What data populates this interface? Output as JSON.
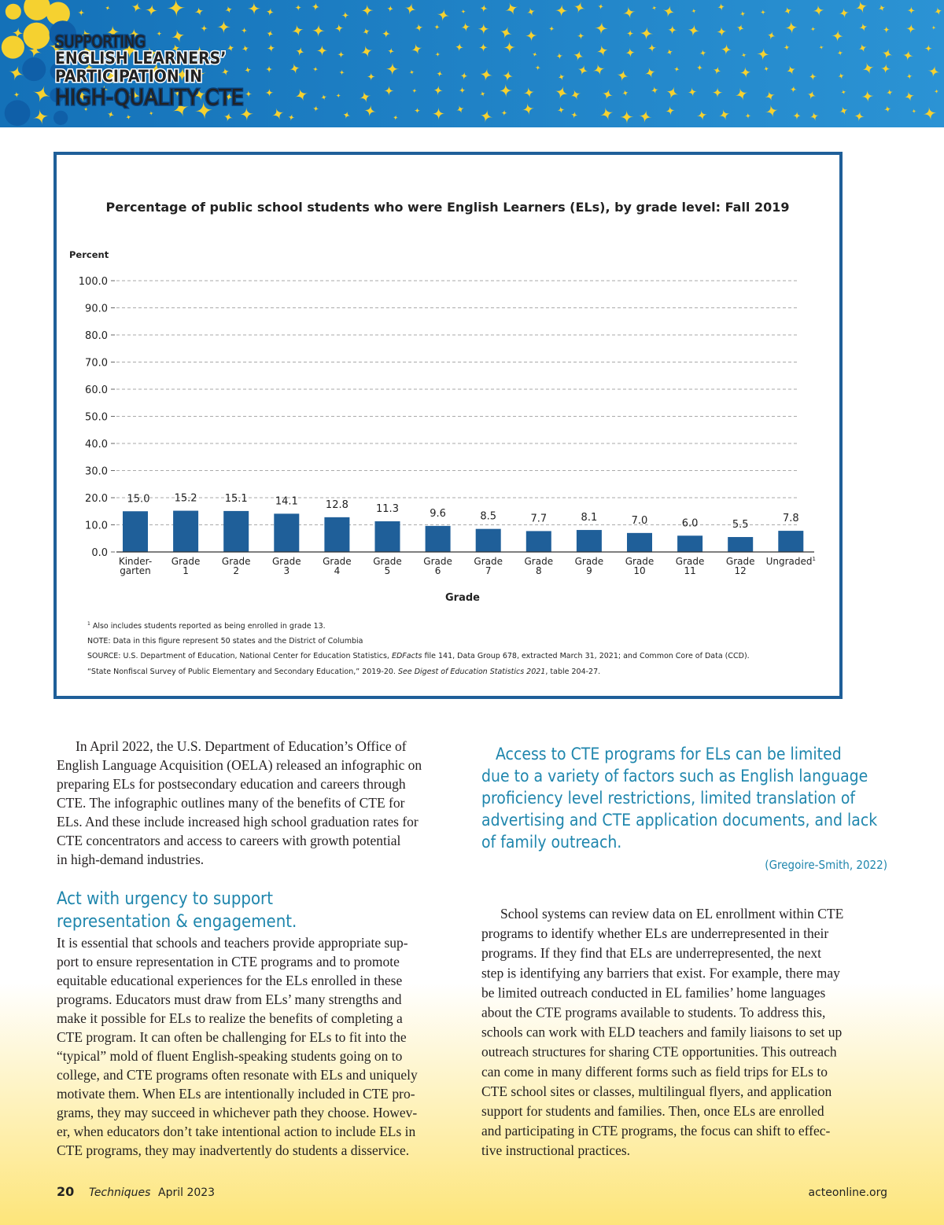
{
  "header": {
    "lines": [
      "SUPPORTING",
      "ENGLISH LEARNERS’",
      "PARTICIPATION IN",
      "HIGH-QUALITY CTE"
    ]
  },
  "chart_data": {
    "type": "bar",
    "title": "Percentage of public school students who were English Learners (ELs), by grade level: Fall 2019",
    "y_label": "Percent",
    "x_label": "Grade",
    "categories": [
      "Kinder- garten",
      "Grade 1",
      "Grade 2",
      "Grade 3",
      "Grade 4",
      "Grade 5",
      "Grade 6",
      "Grade 7",
      "Grade 8",
      "Grade 9",
      "Grade 10",
      "Grade 11",
      "Grade 12",
      "Ungraded"
    ],
    "values": [
      15.0,
      15.2,
      15.1,
      14.1,
      12.8,
      11.3,
      9.6,
      8.5,
      7.7,
      8.1,
      7.0,
      6.0,
      5.5,
      7.8
    ],
    "value_labels": [
      "15.0",
      "15.2",
      "15.1",
      "14.1",
      "12.8",
      "11.3",
      "9.6",
      "8.5",
      "7.7",
      "8.1",
      "7.0",
      "6.0",
      "5.5",
      "7.8"
    ],
    "color": "#1f5f99",
    "ylim": [
      0,
      100
    ],
    "yticks": [
      {
        "value": 0,
        "label": "0.0"
      },
      {
        "value": 10,
        "label": "10.0"
      },
      {
        "value": 20,
        "label": "20.0"
      },
      {
        "value": 30,
        "label": "30.0"
      },
      {
        "value": 40,
        "label": "40.0"
      },
      {
        "value": 50,
        "label": "50.0"
      },
      {
        "value": 60,
        "label": "60.0"
      },
      {
        "value": 70,
        "label": "70.0"
      },
      {
        "value": 80,
        "label": "80.0"
      },
      {
        "value": 90,
        "label": "90.0"
      },
      {
        "value": 100,
        "label": "100.0"
      }
    ],
    "grid": true,
    "footnotes": [
      {
        "mark": "1",
        "text": "Also includes students reported as being enrolled in grade 13."
      }
    ],
    "note": "NOTE: Data in this figure represent 50 states and the District of Columbia",
    "source": [
      [
        {
          "text": "SOURCE: U.S. Department of Education, National Center for Education Statistics, "
        },
        {
          "text": "EDFacts",
          "italic": true
        },
        {
          "text": " file 141, Data Group 678, extracted March 31, 2021; and Common Core of Data (CCD)."
        }
      ],
      [
        {
          "text": "“State Nonfiscal Survey of Public Elementary and Secondary Education,” 2019-20. "
        },
        {
          "text": "See Digest of Education Statistics 2021",
          "italic": true
        },
        {
          "text": ", table 204-27."
        }
      ]
    ]
  },
  "left_column": {
    "paragraph_1": [
      "In April 2022, the U.S. Department of Education’s Office of",
      "English Language Acquisition (OELA) released an infographic on",
      "preparing ELs for postsecondary education and careers through",
      "CTE. The infographic outlines many of the benefits of CTE for",
      "ELs. And these include increased high school graduation rates for",
      "CTE concentrators and access to careers with growth potential",
      "in high-demand industries."
    ],
    "heading": [
      "Act with urgency to support",
      "representation & engagement."
    ],
    "paragraph_2": [
      "It is essential that schools and teachers provide appropriate sup-",
      "port to ensure representation in CTE programs and to promote",
      "equitable educational experiences for the ELs enrolled in these",
      "programs. Educators must draw from ELs’ many strengths and",
      "make it possible for ELs to realize the benefits of completing a",
      "CTE program. It can often be challenging for ELs to fit into the",
      "“typical” mold of fluent English-speaking students going on to",
      "college, and CTE programs often resonate with ELs and uniquely",
      "motivate them. When ELs are intentionally included in CTE pro-",
      "grams, they may succeed in whichever path they choose. Howev-",
      "er, when educators don’t take intentional action to include ELs in",
      "CTE programs, they may inadvertently do students a disservice."
    ]
  },
  "right_column": {
    "quote": [
      "Access to CTE programs for ELs can be limited",
      "due to a variety of factors such as English language",
      "proficiency level restrictions, limited translation of",
      "advertising and CTE application documents, and lack",
      "of family outreach."
    ],
    "citation": "(Gregoire-Smith, 2022)",
    "paragraph": [
      "School systems can review data on EL enrollment within CTE",
      "programs to identify whether ELs are underrepresented in their",
      "programs. If they find that ELs are underrepresented, the next",
      "step is identifying any barriers that exist. For example, there may",
      "be limited outreach conducted in EL families’ home languages",
      "about the CTE programs available to students. To address this,",
      "schools can work with ELD teachers and family liaisons to set up",
      "outreach structures for sharing CTE opportunities. This outreach",
      "can come in many different forms such as field trips for ELs to",
      "CTE school sites or classes, multilingual flyers, and application",
      "support for students and families. Then, once ELs are enrolled",
      "and participating in CTE programs, the focus can shift to effec-",
      "tive instructional practices."
    ]
  },
  "footer": {
    "page": "20",
    "publication": "Techniques",
    "date": "April 2023",
    "site": "acteonline.org"
  }
}
